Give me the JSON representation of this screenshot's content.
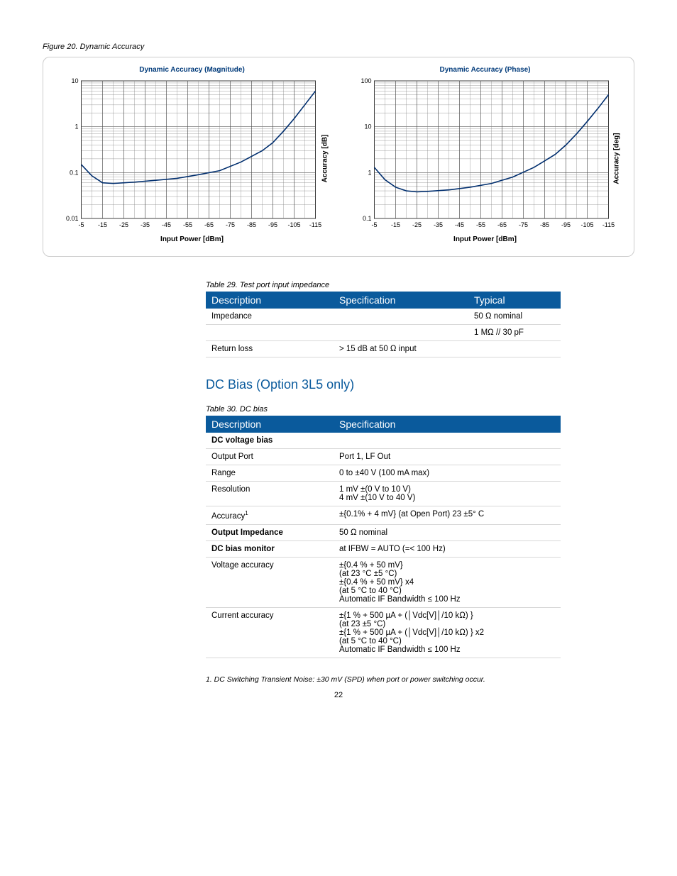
{
  "figure": {
    "caption": "Figure 20. Dynamic Accuracy",
    "chart_left": {
      "title": "Dynamic Accuracy (Magnitude)",
      "xlabel": "Input Power [dBm]",
      "ylabel": "Accuracy [dB]",
      "x_ticks": [
        -5,
        -15,
        -25,
        -35,
        -45,
        -55,
        -65,
        -75,
        -85,
        -95,
        -105,
        -115
      ],
      "xlim": [
        -5,
        -115
      ],
      "ylim": [
        0.01,
        10
      ],
      "y_scale": "log",
      "y_ticks": [
        0.01,
        0.1,
        1,
        10
      ],
      "line_color": "#002e6e",
      "line_width": 1.6,
      "grid_color": "#555",
      "minor_grid_color": "#888",
      "background_color": "#ffffff",
      "data": [
        {
          "x": -5,
          "y": 0.15
        },
        {
          "x": -10,
          "y": 0.085
        },
        {
          "x": -15,
          "y": 0.06
        },
        {
          "x": -20,
          "y": 0.058
        },
        {
          "x": -25,
          "y": 0.06
        },
        {
          "x": -30,
          "y": 0.062
        },
        {
          "x": -40,
          "y": 0.068
        },
        {
          "x": -50,
          "y": 0.075
        },
        {
          "x": -60,
          "y": 0.09
        },
        {
          "x": -70,
          "y": 0.11
        },
        {
          "x": -80,
          "y": 0.17
        },
        {
          "x": -90,
          "y": 0.3
        },
        {
          "x": -95,
          "y": 0.45
        },
        {
          "x": -100,
          "y": 0.8
        },
        {
          "x": -105,
          "y": 1.5
        },
        {
          "x": -110,
          "y": 3.0
        },
        {
          "x": -115,
          "y": 6.0
        }
      ]
    },
    "chart_right": {
      "title": "Dynamic Accuracy (Phase)",
      "xlabel": "Input Power [dBm]",
      "ylabel": "Accuracy [deg]",
      "x_ticks": [
        -5,
        -15,
        -25,
        -35,
        -45,
        -55,
        -65,
        -75,
        -85,
        -95,
        -105,
        -115
      ],
      "xlim": [
        -5,
        -115
      ],
      "ylim": [
        0.1,
        100
      ],
      "y_scale": "log",
      "y_ticks": [
        0.1,
        1,
        10,
        100
      ],
      "line_color": "#002e6e",
      "line_width": 1.6,
      "grid_color": "#555",
      "minor_grid_color": "#888",
      "background_color": "#ffffff",
      "data": [
        {
          "x": -5,
          "y": 1.3
        },
        {
          "x": -10,
          "y": 0.7
        },
        {
          "x": -15,
          "y": 0.48
        },
        {
          "x": -20,
          "y": 0.4
        },
        {
          "x": -25,
          "y": 0.38
        },
        {
          "x": -30,
          "y": 0.39
        },
        {
          "x": -40,
          "y": 0.42
        },
        {
          "x": -50,
          "y": 0.48
        },
        {
          "x": -60,
          "y": 0.58
        },
        {
          "x": -70,
          "y": 0.8
        },
        {
          "x": -80,
          "y": 1.3
        },
        {
          "x": -90,
          "y": 2.5
        },
        {
          "x": -95,
          "y": 4.0
        },
        {
          "x": -100,
          "y": 7.0
        },
        {
          "x": -105,
          "y": 13
        },
        {
          "x": -110,
          "y": 25
        },
        {
          "x": -115,
          "y": 50
        }
      ]
    }
  },
  "table29": {
    "caption": "Table 29. Test port input impedance",
    "headers": [
      "Description",
      "Specification",
      "Typical"
    ],
    "col_widths": [
      "36%",
      "38%",
      "26%"
    ],
    "rows": [
      [
        "Impedance",
        "",
        "50 Ω nominal"
      ],
      [
        "",
        "",
        "1 MΩ // 30 pF"
      ],
      [
        "Return loss",
        "> 15 dB at 50 Ω input",
        ""
      ]
    ]
  },
  "section_title": "DC Bias (Option 3L5 only)",
  "table30": {
    "caption": "Table 30. DC bias",
    "headers": [
      "Description",
      "Specification"
    ],
    "col_widths": [
      "36%",
      "64%"
    ],
    "rows": [
      {
        "d": "DC voltage bias",
        "s": "",
        "bold": true
      },
      {
        "d": "Output Port",
        "s": "Port 1, LF Out"
      },
      {
        "d": "Range",
        "s": "0 to ±40 V (100 mA max)"
      },
      {
        "d": "Resolution",
        "s": "1 mV ±(0 V to 10 V)\n4 mV ±(10 V to 40 V)"
      },
      {
        "d": "Accuracy",
        "sup": "1",
        "s": "±{0.1% + 4 mV} (at Open Port) 23 ±5° C"
      },
      {
        "d": "Output Impedance",
        "s": "50 Ω nominal",
        "bold": true
      },
      {
        "d": "DC bias monitor",
        "s": "at IFBW = AUTO (=< 100 Hz)",
        "bold": true
      },
      {
        "d": "Voltage accuracy",
        "s": "±{0.4 % + 50 mV}\n(at 23 °C ±5 °C)\n±{0.4 % + 50 mV} x4\n(at 5 °C to 40 °C)\nAutomatic IF Bandwidth ≤ 100 Hz"
      },
      {
        "d": "Current accuracy",
        "s": "±{1 % + 500 µA + (│Vdc[V]│/10 kΩ) }\n(at 23 ±5 °C)\n±{1 % + 500 µA + (│Vdc[V]│/10 kΩ) } x2\n(at 5 °C to 40 °C)\nAutomatic IF Bandwidth ≤ 100 Hz"
      }
    ]
  },
  "footnote": "1.   DC Switching Transient Noise: ±30 mV (SPD) when port or power switching occur.",
  "page": "22"
}
